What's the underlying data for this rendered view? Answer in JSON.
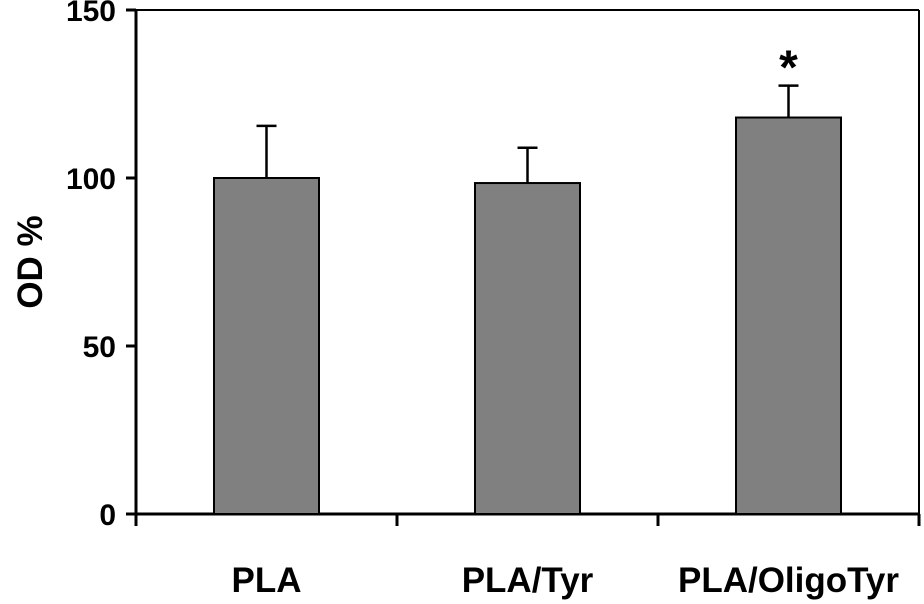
{
  "chart_data": {
    "type": "bar",
    "title": "",
    "xlabel": "",
    "ylabel": "OD %",
    "ylim": [
      0,
      150
    ],
    "yticks": [
      0,
      50,
      100,
      150
    ],
    "categories": [
      "PLA",
      "PLA/Tyr",
      "PLA/OligoTyr"
    ],
    "values": [
      100,
      98.5,
      118
    ],
    "errors": [
      15.5,
      10.5,
      9.5
    ],
    "annotations": [
      "",
      "",
      "*"
    ],
    "grid": false,
    "legend": "none",
    "bar_color": "#808080",
    "bar_edge_color": "#000000"
  }
}
